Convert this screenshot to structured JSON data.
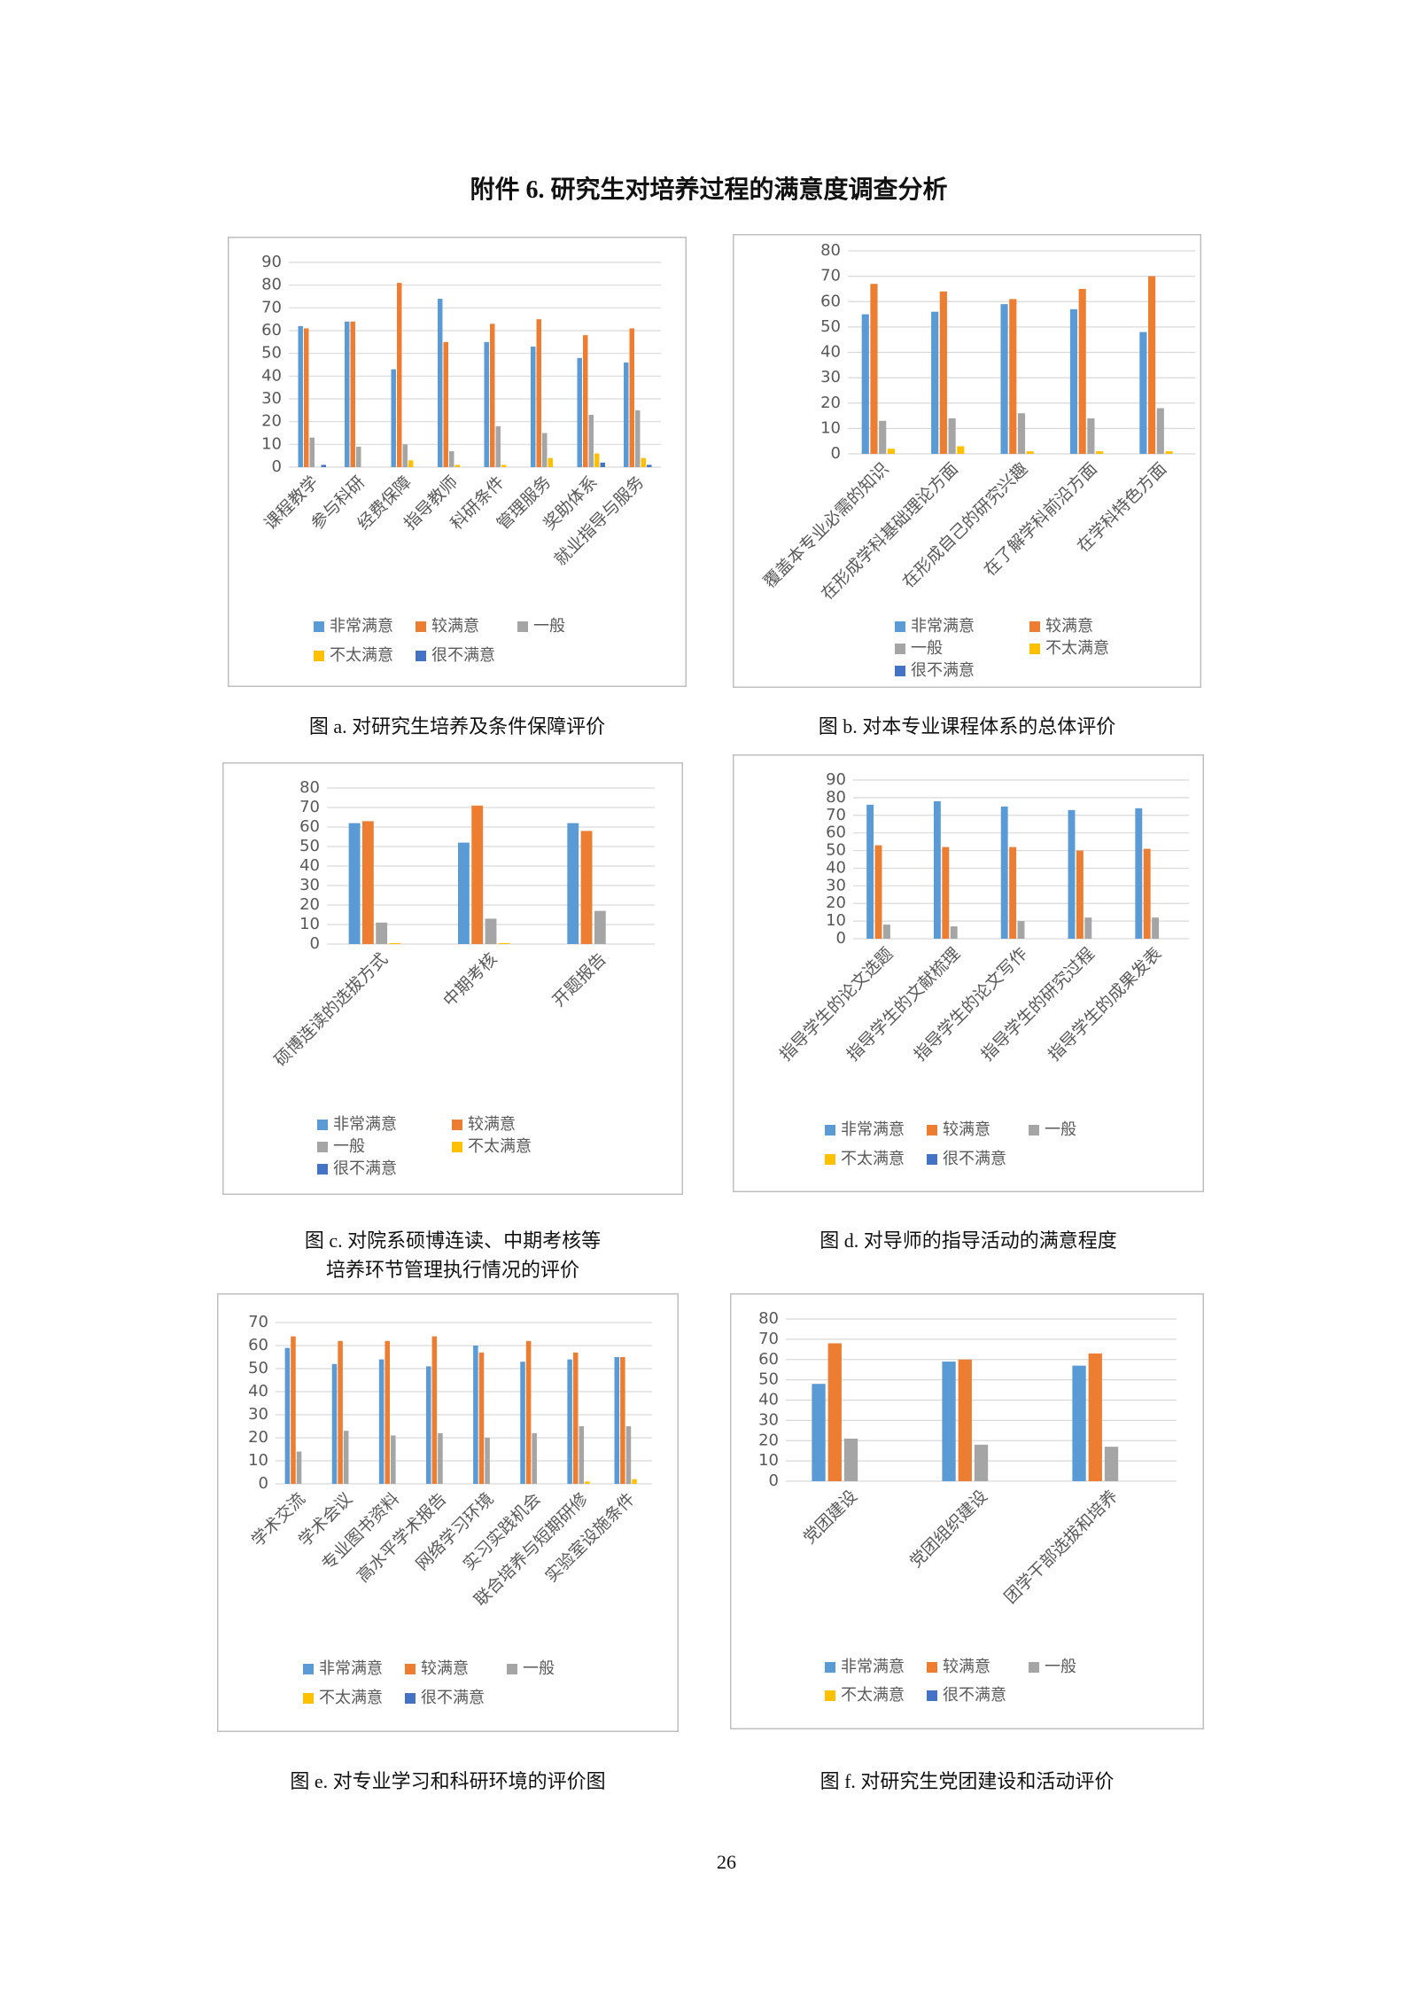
{
  "heading": "附件 6. 研究生对培养过程的满意度调查分析",
  "page_number": "26",
  "chart_data": [
    {
      "type": "bar",
      "title": [
        "图 a. 对研究生培养及条件保障评价"
      ],
      "categories": [
        "课程教学",
        "参与科研",
        "经费保障",
        "指导教师",
        "科研条件",
        "管理服务",
        "奖助体系",
        "就业指导与服务"
      ],
      "series": [
        {
          "name": "非常满意",
          "color": "#5b9bd5",
          "values": [
            62,
            64,
            43,
            74,
            55,
            53,
            48,
            46
          ]
        },
        {
          "name": "较满意",
          "color": "#ed7d31",
          "values": [
            61,
            64,
            81,
            55,
            63,
            65,
            58,
            61
          ]
        },
        {
          "name": "一般",
          "color": "#a5a5a5",
          "values": [
            13,
            9,
            10,
            7,
            18,
            15,
            23,
            25
          ]
        },
        {
          "name": "不太满意",
          "color": "#ffc000",
          "values": [
            0,
            0,
            3,
            1,
            1,
            4,
            6,
            4
          ]
        },
        {
          "name": "很不满意",
          "color": "#4472c4",
          "values": [
            1,
            0,
            0,
            0,
            0,
            0,
            2,
            1
          ]
        }
      ],
      "ylim": [
        0,
        90
      ],
      "yticks": [
        0,
        10,
        20,
        30,
        40,
        50,
        60,
        70,
        80,
        90
      ],
      "grid": true
    },
    {
      "type": "bar",
      "title": [
        "图 b. 对本专业课程体系的总体评价"
      ],
      "categories": [
        "覆盖本专业必需的知识",
        "在形成学科基础理论方面",
        "在形成自己的研究兴趣",
        "在了解学科前沿方面",
        "在学科特色方面"
      ],
      "series": [
        {
          "name": "非常满意",
          "color": "#5b9bd5",
          "values": [
            55,
            56,
            59,
            57,
            48
          ]
        },
        {
          "name": "较满意",
          "color": "#ed7d31",
          "values": [
            67,
            64,
            61,
            65,
            70
          ]
        },
        {
          "name": "一般",
          "color": "#a5a5a5",
          "values": [
            13,
            14,
            16,
            14,
            18
          ]
        },
        {
          "name": "不太满意",
          "color": "#ffc000",
          "values": [
            2,
            3,
            1,
            1,
            1
          ]
        },
        {
          "name": "很不满意",
          "color": "#4472c4",
          "values": [
            0,
            0,
            0,
            0,
            0
          ]
        }
      ],
      "ylim": [
        0,
        80
      ],
      "yticks": [
        0,
        10,
        20,
        30,
        40,
        50,
        60,
        70,
        80
      ],
      "grid": true
    },
    {
      "type": "bar",
      "title": [
        "图 c. 对院系硕博连读、中期考核等",
        "培养环节管理执行情况的评价"
      ],
      "categories": [
        "硕博连读的选拔方式",
        "中期考核",
        "开题报告"
      ],
      "series": [
        {
          "name": "非常满意",
          "color": "#5b9bd5",
          "values": [
            62,
            52,
            62
          ]
        },
        {
          "name": "较满意",
          "color": "#ed7d31",
          "values": [
            63,
            71,
            58
          ]
        },
        {
          "name": "一般",
          "color": "#a5a5a5",
          "values": [
            11,
            13,
            17
          ]
        },
        {
          "name": "不太满意",
          "color": "#ffc000",
          "values": [
            0.5,
            0.5,
            0
          ]
        },
        {
          "name": "很不满意",
          "color": "#4472c4",
          "values": [
            0,
            0,
            0
          ]
        }
      ],
      "ylim": [
        0,
        80
      ],
      "yticks": [
        0,
        10,
        20,
        30,
        40,
        50,
        60,
        70,
        80
      ],
      "grid": true
    },
    {
      "type": "bar",
      "title": [
        "图 d. 对导师的指导活动的满意程度"
      ],
      "categories": [
        "指导学生的论文选题",
        "指导学生的文献梳理",
        "指导学生的论文写作",
        "指导学生的研究过程",
        "指导学生的成果发表"
      ],
      "series": [
        {
          "name": "非常满意",
          "color": "#5b9bd5",
          "values": [
            76,
            78,
            75,
            73,
            74
          ]
        },
        {
          "name": "较满意",
          "color": "#ed7d31",
          "values": [
            53,
            52,
            52,
            50,
            51
          ]
        },
        {
          "name": "一般",
          "color": "#a5a5a5",
          "values": [
            8,
            7,
            10,
            12,
            12
          ]
        },
        {
          "name": "不太满意",
          "color": "#ffc000",
          "values": [
            0,
            0,
            0,
            0,
            0
          ]
        },
        {
          "name": "很不满意",
          "color": "#4472c4",
          "values": [
            0,
            0,
            0,
            0,
            0
          ]
        }
      ],
      "ylim": [
        0,
        90
      ],
      "yticks": [
        0,
        10,
        20,
        30,
        40,
        50,
        60,
        70,
        80,
        90
      ],
      "grid": true
    },
    {
      "type": "bar",
      "title": [
        "图 e. 对专业学习和科研环境的评价图"
      ],
      "categories": [
        "学术交流",
        "学术会议",
        "专业图书资料",
        "高水平学术报告",
        "网络学习环境",
        "实习实践机会",
        "联合培养与短期研修",
        "实验室设施条件"
      ],
      "series": [
        {
          "name": "非常满意",
          "color": "#5b9bd5",
          "values": [
            59,
            52,
            54,
            51,
            60,
            53,
            54,
            55
          ]
        },
        {
          "name": "较满意",
          "color": "#ed7d31",
          "values": [
            64,
            62,
            62,
            64,
            57,
            62,
            57,
            55
          ]
        },
        {
          "name": "一般",
          "color": "#a5a5a5",
          "values": [
            14,
            23,
            21,
            22,
            20,
            22,
            25,
            25
          ]
        },
        {
          "name": "不太满意",
          "color": "#ffc000",
          "values": [
            0,
            0,
            0,
            0,
            0,
            0,
            1,
            2
          ]
        },
        {
          "name": "很不满意",
          "color": "#4472c4",
          "values": [
            0,
            0,
            0,
            0,
            0,
            0,
            0,
            0
          ]
        }
      ],
      "ylim": [
        0,
        70
      ],
      "yticks": [
        0,
        10,
        20,
        30,
        40,
        50,
        60,
        70
      ],
      "grid": true
    },
    {
      "type": "bar",
      "title": [
        "图 f. 对研究生党团建设和活动评价"
      ],
      "categories": [
        "党团建设",
        "党团组织建设",
        "团学干部选拔和培养"
      ],
      "series": [
        {
          "name": "非常满意",
          "color": "#5b9bd5",
          "values": [
            48,
            59,
            57
          ]
        },
        {
          "name": "较满意",
          "color": "#ed7d31",
          "values": [
            68,
            60,
            63
          ]
        },
        {
          "name": "一般",
          "color": "#a5a5a5",
          "values": [
            21,
            18,
            17
          ]
        },
        {
          "name": "不太满意",
          "color": "#ffc000",
          "values": [
            0,
            0,
            0
          ]
        },
        {
          "name": "很不满意",
          "color": "#4472c4",
          "values": [
            0,
            0,
            0
          ]
        }
      ],
      "ylim": [
        0,
        80
      ],
      "yticks": [
        0,
        10,
        20,
        30,
        40,
        50,
        60,
        70,
        80
      ],
      "grid": true
    }
  ]
}
